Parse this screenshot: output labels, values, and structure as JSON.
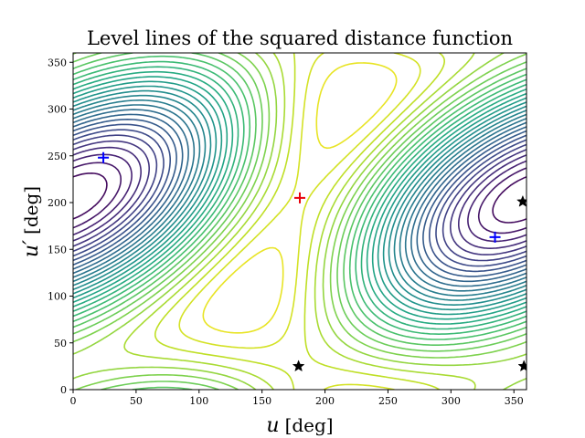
{
  "chart_data": {
    "type": "contour",
    "title": "Level lines of the squared distance function",
    "xlabel": "u [deg]",
    "xlabel_symbol": "u",
    "xlabel_unit": "[deg]",
    "ylabel": "u′ [deg]",
    "ylabel_symbol": "u′",
    "ylabel_unit": "[deg]",
    "xlim": [
      0,
      360
    ],
    "ylim": [
      0,
      360
    ],
    "xticks": [
      0,
      50,
      100,
      150,
      200,
      250,
      300,
      350
    ],
    "yticks": [
      0,
      50,
      100,
      150,
      200,
      250,
      300,
      350
    ],
    "grid": false,
    "colormap": "viridis",
    "levels": 30,
    "markers": [
      {
        "kind": "plus",
        "color": "#e8000b",
        "x": 180,
        "y": 205
      },
      {
        "kind": "plus",
        "color": "#0000ff",
        "x": 24,
        "y": 248
      },
      {
        "kind": "plus",
        "color": "#0000ff",
        "x": 335,
        "y": 163
      },
      {
        "kind": "star",
        "color": "#000000",
        "x": 179,
        "y": 25
      },
      {
        "kind": "star",
        "color": "#000000",
        "x": 357,
        "y": 201
      },
      {
        "kind": "star",
        "color": "#000000",
        "x": 358,
        "y": 25
      }
    ]
  }
}
